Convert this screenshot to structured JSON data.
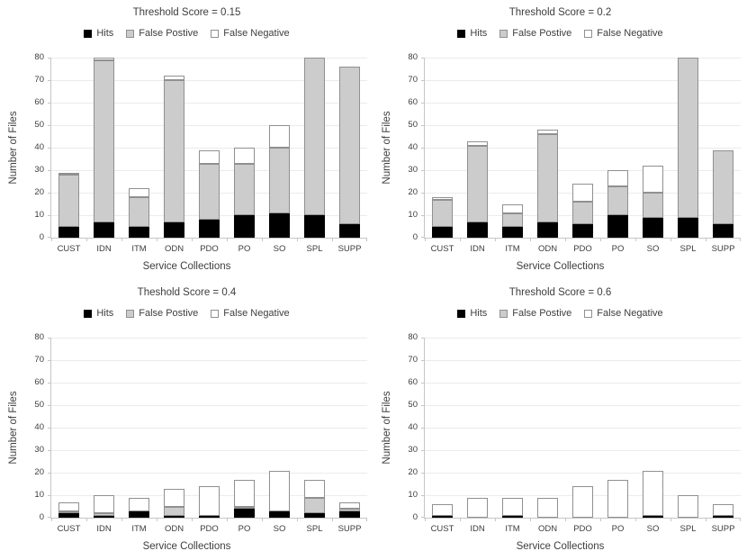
{
  "colors": {
    "hits": "#000000",
    "false_positive_fill": "#cccccc",
    "false_negative_fill": "#ffffff",
    "bar_border": "#909090",
    "gridline": "#ebebeb",
    "axis": "#c6c6c6",
    "text": "#3d3d3d"
  },
  "chart_data": [
    {
      "type": "bar",
      "stacked": true,
      "title": "Threshold Score = 0.15",
      "xlabel": "Service Collections",
      "ylabel": "Number of Files",
      "ylim": [
        0,
        80
      ],
      "yticks": [
        0,
        10,
        20,
        30,
        40,
        50,
        60,
        70,
        80
      ],
      "grid": true,
      "legend_position": "top",
      "categories": [
        "CUST",
        "IDN",
        "ITM",
        "ODN",
        "PDO",
        "PO",
        "SO",
        "SPL",
        "SUPP"
      ],
      "series": [
        {
          "name": "Hits",
          "color": "#000000",
          "values": [
            5,
            7,
            5,
            7,
            8,
            10,
            11,
            10,
            6
          ]
        },
        {
          "name": "False Postive",
          "color": "#cccccc",
          "values": [
            23,
            72,
            13,
            63,
            25,
            23,
            29,
            70,
            70
          ]
        },
        {
          "name": "False Negative",
          "color": "#ffffff",
          "values": [
            1,
            1,
            4,
            2,
            6,
            7,
            10,
            0,
            0
          ]
        }
      ],
      "stack_totals": [
        29,
        80,
        22,
        72,
        39,
        40,
        50,
        80,
        76
      ]
    },
    {
      "type": "bar",
      "stacked": true,
      "title": "Threshold Score = 0.2",
      "xlabel": "Service Collections",
      "ylabel": "Number of Files",
      "ylim": [
        0,
        80
      ],
      "yticks": [
        0,
        10,
        20,
        30,
        40,
        50,
        60,
        70,
        80
      ],
      "grid": true,
      "legend_position": "top",
      "categories": [
        "CUST",
        "IDN",
        "ITM",
        "ODN",
        "PDO",
        "PO",
        "SO",
        "SPL",
        "SUPP"
      ],
      "series": [
        {
          "name": "Hits",
          "color": "#000000",
          "values": [
            5,
            7,
            5,
            7,
            6,
            10,
            9,
            9,
            6
          ]
        },
        {
          "name": "False Postive",
          "color": "#cccccc",
          "values": [
            12,
            34,
            6,
            39,
            10,
            13,
            11,
            71,
            33
          ]
        },
        {
          "name": "False Negative",
          "color": "#ffffff",
          "values": [
            1,
            2,
            4,
            2,
            8,
            7,
            12,
            0,
            0
          ]
        }
      ],
      "stack_totals": [
        18,
        43,
        15,
        48,
        24,
        30,
        32,
        80,
        39
      ]
    },
    {
      "type": "bar",
      "stacked": true,
      "title": "Theshold Score = 0.4",
      "xlabel": "Service Collections",
      "ylabel": "Number of Files",
      "ylim": [
        0,
        80
      ],
      "yticks": [
        0,
        10,
        20,
        30,
        40,
        50,
        60,
        70,
        80
      ],
      "grid": true,
      "legend_position": "top",
      "categories": [
        "CUST",
        "IDN",
        "ITM",
        "ODN",
        "PDO",
        "PO",
        "SO",
        "SPL",
        "SUPP"
      ],
      "series": [
        {
          "name": "Hits",
          "color": "#000000",
          "values": [
            2,
            1,
            3,
            1,
            1,
            4,
            3,
            2,
            3
          ]
        },
        {
          "name": "False Postive",
          "color": "#cccccc",
          "values": [
            1,
            1,
            0,
            4,
            0,
            1,
            0,
            7,
            1
          ]
        },
        {
          "name": "False Negative",
          "color": "#ffffff",
          "values": [
            4,
            8,
            6,
            8,
            13,
            12,
            18,
            8,
            3
          ]
        }
      ],
      "stack_totals": [
        7,
        10,
        9,
        13,
        14,
        17,
        21,
        17,
        7
      ]
    },
    {
      "type": "bar",
      "stacked": true,
      "title": "Threshold Score = 0.6",
      "xlabel": "Service Collections",
      "ylabel": "Number of Files",
      "ylim": [
        0,
        80
      ],
      "yticks": [
        0,
        10,
        20,
        30,
        40,
        50,
        60,
        70,
        80
      ],
      "grid": true,
      "legend_position": "top",
      "categories": [
        "CUST",
        "IDN",
        "ITM",
        "ODN",
        "PDO",
        "PO",
        "SO",
        "SPL",
        "SUPP"
      ],
      "series": [
        {
          "name": "Hits",
          "color": "#000000",
          "values": [
            1,
            0,
            1,
            0,
            0,
            0,
            1,
            0,
            1
          ]
        },
        {
          "name": "False Postive",
          "color": "#cccccc",
          "values": [
            0,
            0,
            0,
            0,
            0,
            0,
            0,
            0,
            0
          ]
        },
        {
          "name": "False Negative",
          "color": "#ffffff",
          "values": [
            5,
            9,
            8,
            9,
            14,
            17,
            20,
            10,
            5
          ]
        }
      ],
      "stack_totals": [
        6,
        9,
        9,
        9,
        14,
        17,
        21,
        10,
        6
      ]
    }
  ]
}
